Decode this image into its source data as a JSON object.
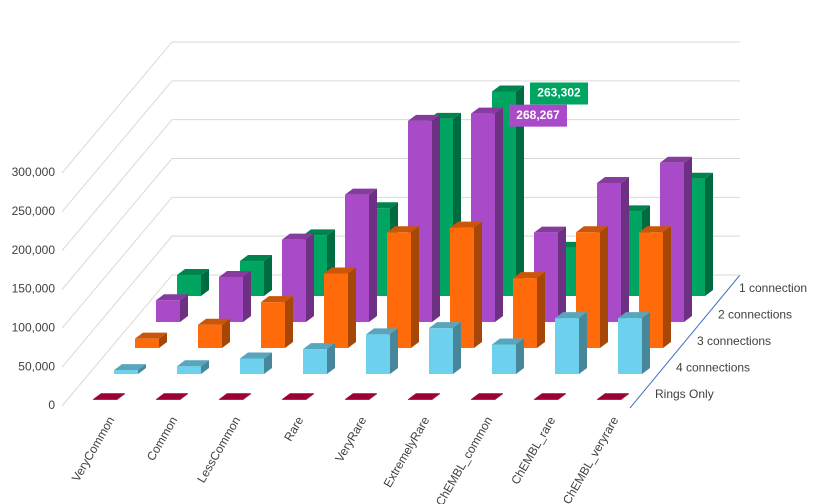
{
  "chart_data": {
    "type": "bar3d",
    "categories": [
      "VeryCommon",
      "Common",
      "LessCommon",
      "Rare",
      "VeryRare",
      "ExtremelyRare",
      "ChEMBL_common",
      "ChEMBL_rare",
      "ChEMBL_veryrare"
    ],
    "series": [
      {
        "name": "1 connection",
        "color": "#00A562",
        "values": [
          27000,
          45000,
          78000,
          113000,
          228000,
          263302,
          62000,
          109000,
          151000
        ],
        "value_labels": [
          null,
          null,
          null,
          null,
          null,
          "263,302",
          null,
          null,
          null
        ]
      },
      {
        "name": "2 connections",
        "color": "#A94AC8",
        "values": [
          28000,
          58000,
          106000,
          164000,
          259000,
          268267,
          115000,
          179000,
          205000
        ],
        "value_labels": [
          null,
          null,
          null,
          null,
          null,
          "268,267",
          null,
          null,
          null
        ]
      },
      {
        "name": "3 connections",
        "color": "#FF6B0A",
        "values": [
          12000,
          30000,
          59000,
          96000,
          149000,
          155000,
          90000,
          149000,
          149000
        ]
      },
      {
        "name": "4 connections",
        "color": "#6DD0EC",
        "values": [
          5000,
          10000,
          20000,
          32000,
          51000,
          59000,
          38000,
          72000,
          72000
        ]
      },
      {
        "name": "Rings Only",
        "color": "#C4003E",
        "values": [
          1000,
          1000,
          1000,
          1000,
          1000,
          1000,
          1000,
          1000,
          1000
        ]
      }
    ],
    "ylim": [
      0,
      300000
    ],
    "yticks": [
      0,
      {
        "value": 50000,
        "label": "50,000"
      },
      {
        "value": 100000,
        "label": "100,000"
      },
      {
        "value": 150000,
        "label": "150,000"
      },
      {
        "value": 200000,
        "label": "200,000"
      },
      {
        "value": 250000,
        "label": "250,000"
      },
      {
        "value": 300000,
        "label": "300,000"
      }
    ],
    "grid": true
  }
}
